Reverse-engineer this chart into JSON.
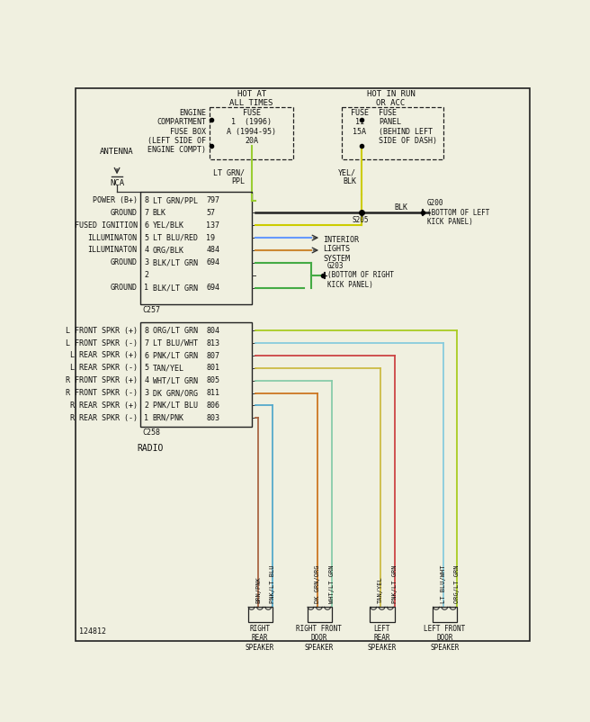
{
  "bg_color": "#f0f0e0",
  "diagram_num": "124812",
  "hot_at_all_times": "HOT AT\nALL TIMES",
  "hot_in_run": "HOT IN RUN\nOR ACC",
  "fuse_box_label": "ENGINE\nCOMPARTMENT\nFUSE BOX\n(LEFT SIDE OF\nENGINE COMPT)",
  "fuse1_lines": [
    "FUSE",
    "1  (1996)",
    "A (1994-95)",
    "20A"
  ],
  "fuse2_lines": [
    "FUSE",
    "11",
    "15A"
  ],
  "fuse_panel_lines": [
    "FUSE",
    "PANEL",
    "(BEHIND LEFT",
    "SIDE OF DASH)"
  ],
  "lt_grn_ppl": "LT GRN/\nPPL",
  "yel_blk": "YEL/\nBLK",
  "antenna_label": "ANTENNA",
  "nca_label": "NCA",
  "radio_label": "RADIO",
  "c257": "C257",
  "c258": "C258",
  "s205": "S205",
  "g200_label": "G200\n(BOTTOM OF LEFT\nKICK PANEL)",
  "g203_label": "G203\n(BOTTOM OF RIGHT\nKICK PANEL)",
  "blk_label": "BLK",
  "interior_lights": "INTERIOR\nLIGHTS\nSYSTEM",
  "connector1_pins": [
    {
      "pin": 8,
      "wire": "LT GRN/PPL",
      "num": "797",
      "label": "POWER (B+)",
      "color": "#9acd32"
    },
    {
      "pin": 7,
      "wire": "BLK",
      "num": "57",
      "label": "GROUND",
      "color": "#222222"
    },
    {
      "pin": 6,
      "wire": "YEL/BLK",
      "num": "137",
      "label": "FUSED IGNITION",
      "color": "#cccc00"
    },
    {
      "pin": 5,
      "wire": "LT BLU/RED",
      "num": "19",
      "label": "ILLUMINATON",
      "color": "#6699ff"
    },
    {
      "pin": 4,
      "wire": "ORG/BLK",
      "num": "484",
      "label": "ILLUMINATON",
      "color": "#cc8833"
    },
    {
      "pin": 3,
      "wire": "BLK/LT GRN",
      "num": "694",
      "label": "GROUND",
      "color": "#44aa44"
    },
    {
      "pin": 2,
      "wire": "",
      "num": "",
      "label": "",
      "color": "#44aa44"
    },
    {
      "pin": 1,
      "wire": "BLK/LT GRN",
      "num": "694",
      "label": "GROUND",
      "color": "#44aa44"
    }
  ],
  "connector2_pins": [
    {
      "pin": 8,
      "wire": "ORG/LT GRN",
      "num": "804",
      "label": "L FRONT SPKR (+)",
      "color": "#aacc22"
    },
    {
      "pin": 7,
      "wire": "LT BLU/WHT",
      "num": "813",
      "label": "L FRONT SPKR (-)",
      "color": "#88ccdd"
    },
    {
      "pin": 6,
      "wire": "PNK/LT GRN",
      "num": "807",
      "label": "L REAR SPKR (+)",
      "color": "#cc4444"
    },
    {
      "pin": 5,
      "wire": "TAN/YEL",
      "num": "801",
      "label": "L REAR SPKR (-)",
      "color": "#ccbb44"
    },
    {
      "pin": 4,
      "wire": "WHT/LT GRN",
      "num": "805",
      "label": "R FRONT SPKR (+)",
      "color": "#88ccaa"
    },
    {
      "pin": 3,
      "wire": "DK GRN/ORG",
      "num": "811",
      "label": "R FRONT SPKR (-)",
      "color": "#cc7722"
    },
    {
      "pin": 2,
      "wire": "PNK/LT BLU",
      "num": "806",
      "label": "R REAR SPKR (+)",
      "color": "#55aacc"
    },
    {
      "pin": 1,
      "wire": "BRN/PNK",
      "num": "803",
      "label": "R REAR SPKR (-)",
      "color": "#aa6644"
    }
  ],
  "speaker_wire_pairs": [
    {
      "labels": [
        "BRN/PNK",
        "PNK/LT BLU"
      ],
      "title": "RIGHT\nREAR\nSPEAKER",
      "colors": [
        "#aa6644",
        "#55aacc"
      ]
    },
    {
      "labels": [
        "DK GRN/ORG",
        "WHT/LT GRN"
      ],
      "title": "RIGHT FRONT\nDOOR\nSPEAKER",
      "colors": [
        "#cc7722",
        "#88ccaa"
      ]
    },
    {
      "labels": [
        "TAN/YEL",
        "PNK/LT GRN"
      ],
      "title": "LEFT\nREAR\nSPEAKER",
      "colors": [
        "#ccbb44",
        "#cc4444"
      ]
    },
    {
      "labels": [
        "LT BLU/WHT",
        "ORG/LT GRN"
      ],
      "title": "LEFT FRONT\nDOOR\nSPEAKER",
      "colors": [
        "#88ccdd",
        "#aacc22"
      ]
    }
  ]
}
